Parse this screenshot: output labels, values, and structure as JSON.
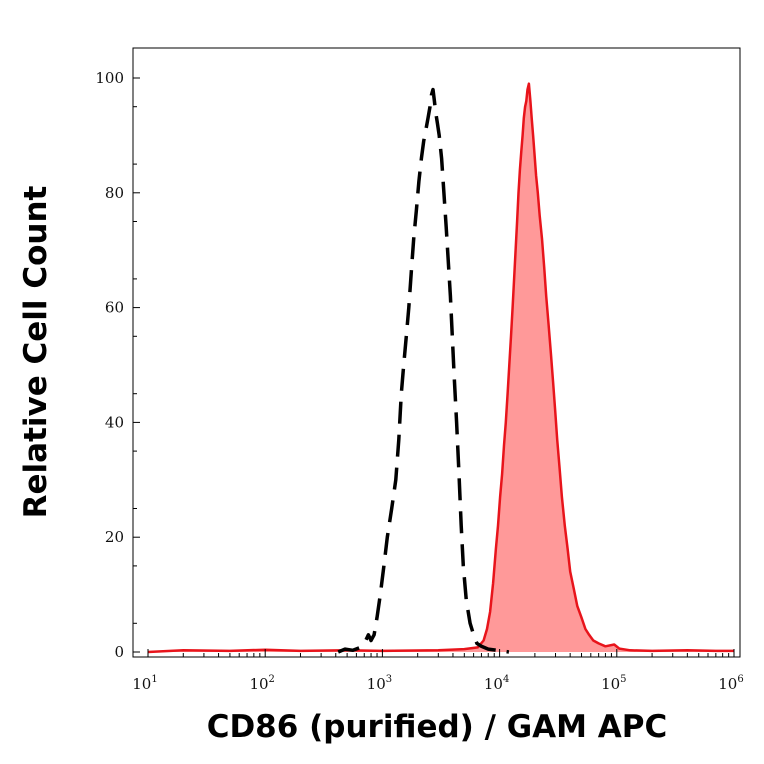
{
  "chart_data": {
    "type": "area",
    "title": "",
    "xlabel": "CD86 (purified) / GAM APC",
    "ylabel": "Relative Cell Count",
    "x_scale": "log",
    "xlim": [
      10,
      1000000
    ],
    "ylim": [
      0,
      100
    ],
    "x_ticks": [
      {
        "value": 10,
        "base": "10",
        "exp": "1"
      },
      {
        "value": 100,
        "base": "10",
        "exp": "2"
      },
      {
        "value": 1000,
        "base": "10",
        "exp": "3"
      },
      {
        "value": 10000,
        "base": "10",
        "exp": "4"
      },
      {
        "value": 100000,
        "base": "10",
        "exp": "5"
      },
      {
        "value": 1000000,
        "base": "10",
        "exp": "6"
      }
    ],
    "y_ticks": [
      "0",
      "20",
      "40",
      "60",
      "80",
      "100"
    ],
    "grid": false,
    "legend": "none",
    "series": [
      {
        "style": "dashed-outline",
        "color": "#000000",
        "points": [
          [
            420,
            0
          ],
          [
            480,
            0.5
          ],
          [
            560,
            0.3
          ],
          [
            650,
            0.8
          ],
          [
            720,
            2
          ],
          [
            760,
            3
          ],
          [
            800,
            2
          ],
          [
            850,
            3
          ],
          [
            900,
            6
          ],
          [
            960,
            10
          ],
          [
            1030,
            15
          ],
          [
            1100,
            20
          ],
          [
            1200,
            25
          ],
          [
            1300,
            30
          ],
          [
            1380,
            37
          ],
          [
            1450,
            45
          ],
          [
            1520,
            50
          ],
          [
            1600,
            55
          ],
          [
            1680,
            60
          ],
          [
            1760,
            66
          ],
          [
            1850,
            72
          ],
          [
            1950,
            77
          ],
          [
            2050,
            82
          ],
          [
            2150,
            86
          ],
          [
            2250,
            89
          ],
          [
            2350,
            91
          ],
          [
            2450,
            93
          ],
          [
            2550,
            95
          ],
          [
            2620,
            97
          ],
          [
            2700,
            98
          ],
          [
            2780,
            96
          ],
          [
            2850,
            94
          ],
          [
            2950,
            92
          ],
          [
            3050,
            90
          ],
          [
            3200,
            86
          ],
          [
            3350,
            80
          ],
          [
            3500,
            74
          ],
          [
            3650,
            68
          ],
          [
            3800,
            62
          ],
          [
            3950,
            55
          ],
          [
            4100,
            48
          ],
          [
            4300,
            40
          ],
          [
            4500,
            31
          ],
          [
            4700,
            22
          ],
          [
            4900,
            15
          ],
          [
            5200,
            9
          ],
          [
            5600,
            5
          ],
          [
            6000,
            3
          ],
          [
            6400,
            1.5
          ],
          [
            7000,
            1
          ],
          [
            8000,
            0.5
          ],
          [
            9500,
            0.3
          ],
          [
            12000,
            0
          ]
        ]
      },
      {
        "style": "filled",
        "color": "#e8141b",
        "fill": "#ff9999",
        "points": [
          [
            10,
            0
          ],
          [
            20,
            0.3
          ],
          [
            50,
            0.2
          ],
          [
            100,
            0.4
          ],
          [
            200,
            0.2
          ],
          [
            500,
            0.3
          ],
          [
            1000,
            0.2
          ],
          [
            3000,
            0.3
          ],
          [
            5000,
            0.5
          ],
          [
            6500,
            0.8
          ],
          [
            7300,
            2
          ],
          [
            7800,
            4
          ],
          [
            8300,
            7
          ],
          [
            8800,
            12
          ],
          [
            9300,
            18
          ],
          [
            9700,
            22
          ],
          [
            10100,
            27
          ],
          [
            10500,
            31
          ],
          [
            10900,
            36
          ],
          [
            11300,
            40
          ],
          [
            11700,
            45
          ],
          [
            12100,
            50
          ],
          [
            12500,
            55
          ],
          [
            12900,
            60
          ],
          [
            13300,
            65
          ],
          [
            13700,
            70
          ],
          [
            14100,
            75
          ],
          [
            14500,
            80
          ],
          [
            14900,
            84
          ],
          [
            15300,
            87
          ],
          [
            15700,
            90
          ],
          [
            16100,
            93
          ],
          [
            16500,
            95
          ],
          [
            16900,
            96
          ],
          [
            17300,
            98
          ],
          [
            17800,
            99
          ],
          [
            18300,
            96
          ],
          [
            18800,
            93
          ],
          [
            19300,
            90
          ],
          [
            19800,
            87
          ],
          [
            20500,
            83
          ],
          [
            21200,
            80
          ],
          [
            22000,
            76
          ],
          [
            23000,
            72
          ],
          [
            24000,
            67
          ],
          [
            25000,
            62
          ],
          [
            26200,
            57
          ],
          [
            27400,
            52
          ],
          [
            28600,
            47
          ],
          [
            29800,
            42
          ],
          [
            31000,
            37
          ],
          [
            32500,
            32
          ],
          [
            34000,
            27
          ],
          [
            36000,
            22
          ],
          [
            38000,
            18
          ],
          [
            40000,
            14
          ],
          [
            43000,
            11
          ],
          [
            46000,
            8
          ],
          [
            50000,
            6
          ],
          [
            54000,
            4
          ],
          [
            58000,
            3
          ],
          [
            63000,
            2
          ],
          [
            70000,
            1.5
          ],
          [
            80000,
            1
          ],
          [
            95000,
            1.3
          ],
          [
            105000,
            0.6
          ],
          [
            130000,
            0.3
          ],
          [
            200000,
            0.2
          ],
          [
            400000,
            0.3
          ],
          [
            700000,
            0.2
          ],
          [
            1000000,
            0.2
          ]
        ]
      }
    ]
  }
}
